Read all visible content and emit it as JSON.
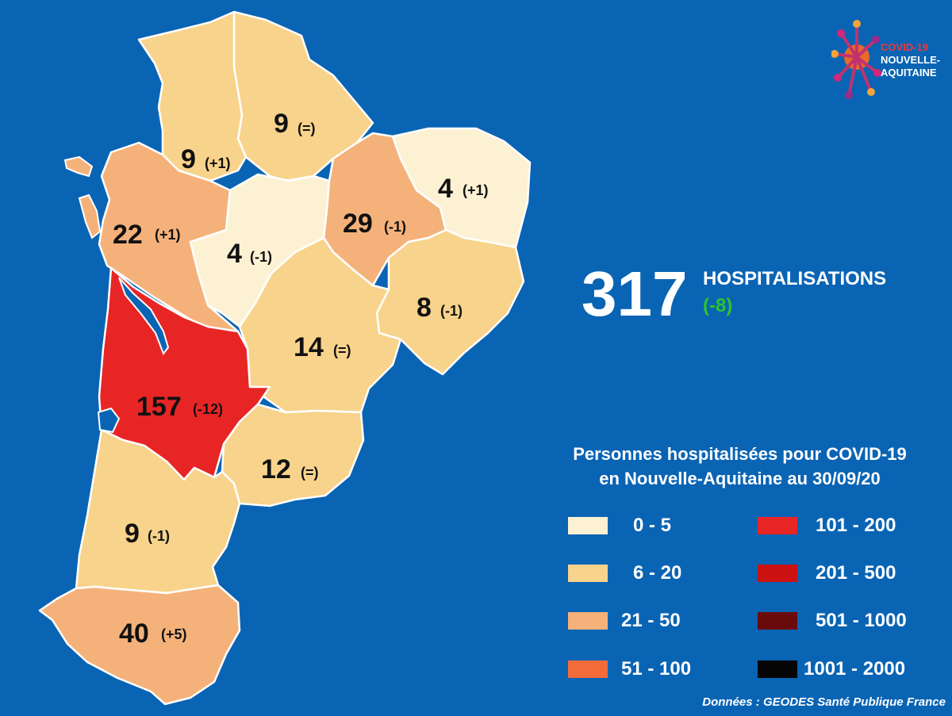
{
  "map": {
    "departments": [
      {
        "id": "vienne",
        "value": "9",
        "change": "(=)",
        "color": "#f8d38b"
      },
      {
        "id": "deux-sevres",
        "value": "9",
        "change": "(+1)",
        "color": "#f8d38b"
      },
      {
        "id": "charente-maritime",
        "value": "22",
        "change": "(+1)",
        "color": "#f4b27a"
      },
      {
        "id": "charente",
        "value": "4",
        "change": "(-1)",
        "color": "#fcf1d3"
      },
      {
        "id": "haute-vienne",
        "value": "29",
        "change": "(-1)",
        "color": "#f4b27a"
      },
      {
        "id": "creuse",
        "value": "4",
        "change": "(+1)",
        "color": "#fcf1d3"
      },
      {
        "id": "correze",
        "value": "8",
        "change": "(-1)",
        "color": "#f8d38b"
      },
      {
        "id": "dordogne",
        "value": "14",
        "change": "(=)",
        "color": "#f8d38b"
      },
      {
        "id": "gironde",
        "value": "157",
        "change": "(-12)",
        "color": "#e82525"
      },
      {
        "id": "lot-et-garonne",
        "value": "12",
        "change": "(=)",
        "color": "#f8d38b"
      },
      {
        "id": "landes",
        "value": "9",
        "change": "(-1)",
        "color": "#f8d38b"
      },
      {
        "id": "pyrenees-atlantiques",
        "value": "40",
        "change": "(+5)",
        "color": "#f4b27a"
      }
    ],
    "background": "#0a64b4"
  },
  "logo": {
    "line1": "COVID-19",
    "line2": "NOUVELLE-",
    "line3": "AQUITAINE"
  },
  "summary": {
    "total": "317",
    "label": "HOSPITALISATIONS",
    "change": "(-8)",
    "change_color": "#2ec22e"
  },
  "legend": {
    "title_line1": "Personnes hospitalisées pour COVID-19",
    "title_line2": "en Nouvelle-Aquitaine au 30/09/20",
    "items": [
      {
        "range": "0 - 5",
        "color": "#fcf1d3"
      },
      {
        "range": "6 - 20",
        "color": "#f8d38b"
      },
      {
        "range": "21 - 50",
        "color": "#f4b27a"
      },
      {
        "range": "51 - 100",
        "color": "#f26c3a"
      },
      {
        "range": "101 - 200",
        "color": "#e82525"
      },
      {
        "range": "201 - 500",
        "color": "#cc1111"
      },
      {
        "range": "501 - 1000",
        "color": "#6b0a0a"
      },
      {
        "range": "1001 - 2000",
        "color": "#050505"
      }
    ]
  },
  "source": "Données : GEODES Santé Publique France"
}
